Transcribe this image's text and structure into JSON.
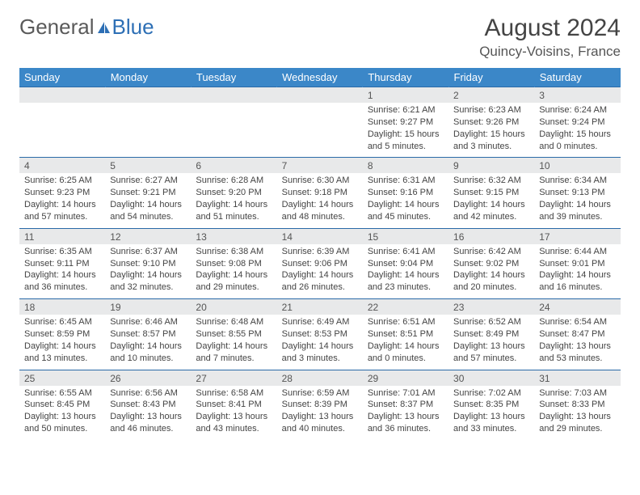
{
  "logo": {
    "text1": "General",
    "text2": "Blue"
  },
  "title": {
    "month": "August 2024",
    "location": "Quincy-Voisins, France"
  },
  "colors": {
    "header_bg": "#3b87c8",
    "header_text": "#ffffff",
    "daynum_bg": "#e8e9ea",
    "border": "#2a6aa8",
    "text": "#444444",
    "logo_gray": "#5a5a5a",
    "logo_blue": "#2d6fb5"
  },
  "weekdays": [
    "Sunday",
    "Monday",
    "Tuesday",
    "Wednesday",
    "Thursday",
    "Friday",
    "Saturday"
  ],
  "first_weekday": 4,
  "days": [
    {
      "n": 1,
      "sr": "6:21 AM",
      "ss": "9:27 PM",
      "dh": 15,
      "dm": 5
    },
    {
      "n": 2,
      "sr": "6:23 AM",
      "ss": "9:26 PM",
      "dh": 15,
      "dm": 3
    },
    {
      "n": 3,
      "sr": "6:24 AM",
      "ss": "9:24 PM",
      "dh": 15,
      "dm": 0
    },
    {
      "n": 4,
      "sr": "6:25 AM",
      "ss": "9:23 PM",
      "dh": 14,
      "dm": 57
    },
    {
      "n": 5,
      "sr": "6:27 AM",
      "ss": "9:21 PM",
      "dh": 14,
      "dm": 54
    },
    {
      "n": 6,
      "sr": "6:28 AM",
      "ss": "9:20 PM",
      "dh": 14,
      "dm": 51
    },
    {
      "n": 7,
      "sr": "6:30 AM",
      "ss": "9:18 PM",
      "dh": 14,
      "dm": 48
    },
    {
      "n": 8,
      "sr": "6:31 AM",
      "ss": "9:16 PM",
      "dh": 14,
      "dm": 45
    },
    {
      "n": 9,
      "sr": "6:32 AM",
      "ss": "9:15 PM",
      "dh": 14,
      "dm": 42
    },
    {
      "n": 10,
      "sr": "6:34 AM",
      "ss": "9:13 PM",
      "dh": 14,
      "dm": 39
    },
    {
      "n": 11,
      "sr": "6:35 AM",
      "ss": "9:11 PM",
      "dh": 14,
      "dm": 36
    },
    {
      "n": 12,
      "sr": "6:37 AM",
      "ss": "9:10 PM",
      "dh": 14,
      "dm": 32
    },
    {
      "n": 13,
      "sr": "6:38 AM",
      "ss": "9:08 PM",
      "dh": 14,
      "dm": 29
    },
    {
      "n": 14,
      "sr": "6:39 AM",
      "ss": "9:06 PM",
      "dh": 14,
      "dm": 26
    },
    {
      "n": 15,
      "sr": "6:41 AM",
      "ss": "9:04 PM",
      "dh": 14,
      "dm": 23
    },
    {
      "n": 16,
      "sr": "6:42 AM",
      "ss": "9:02 PM",
      "dh": 14,
      "dm": 20
    },
    {
      "n": 17,
      "sr": "6:44 AM",
      "ss": "9:01 PM",
      "dh": 14,
      "dm": 16
    },
    {
      "n": 18,
      "sr": "6:45 AM",
      "ss": "8:59 PM",
      "dh": 14,
      "dm": 13
    },
    {
      "n": 19,
      "sr": "6:46 AM",
      "ss": "8:57 PM",
      "dh": 14,
      "dm": 10
    },
    {
      "n": 20,
      "sr": "6:48 AM",
      "ss": "8:55 PM",
      "dh": 14,
      "dm": 7
    },
    {
      "n": 21,
      "sr": "6:49 AM",
      "ss": "8:53 PM",
      "dh": 14,
      "dm": 3
    },
    {
      "n": 22,
      "sr": "6:51 AM",
      "ss": "8:51 PM",
      "dh": 14,
      "dm": 0
    },
    {
      "n": 23,
      "sr": "6:52 AM",
      "ss": "8:49 PM",
      "dh": 13,
      "dm": 57
    },
    {
      "n": 24,
      "sr": "6:54 AM",
      "ss": "8:47 PM",
      "dh": 13,
      "dm": 53
    },
    {
      "n": 25,
      "sr": "6:55 AM",
      "ss": "8:45 PM",
      "dh": 13,
      "dm": 50
    },
    {
      "n": 26,
      "sr": "6:56 AM",
      "ss": "8:43 PM",
      "dh": 13,
      "dm": 46
    },
    {
      "n": 27,
      "sr": "6:58 AM",
      "ss": "8:41 PM",
      "dh": 13,
      "dm": 43
    },
    {
      "n": 28,
      "sr": "6:59 AM",
      "ss": "8:39 PM",
      "dh": 13,
      "dm": 40
    },
    {
      "n": 29,
      "sr": "7:01 AM",
      "ss": "8:37 PM",
      "dh": 13,
      "dm": 36
    },
    {
      "n": 30,
      "sr": "7:02 AM",
      "ss": "8:35 PM",
      "dh": 13,
      "dm": 33
    },
    {
      "n": 31,
      "sr": "7:03 AM",
      "ss": "8:33 PM",
      "dh": 13,
      "dm": 29
    }
  ],
  "labels": {
    "sunrise": "Sunrise:",
    "sunset": "Sunset:",
    "daylight": "Daylight:",
    "hours": "hours",
    "and": "and",
    "minutes": "minutes."
  }
}
